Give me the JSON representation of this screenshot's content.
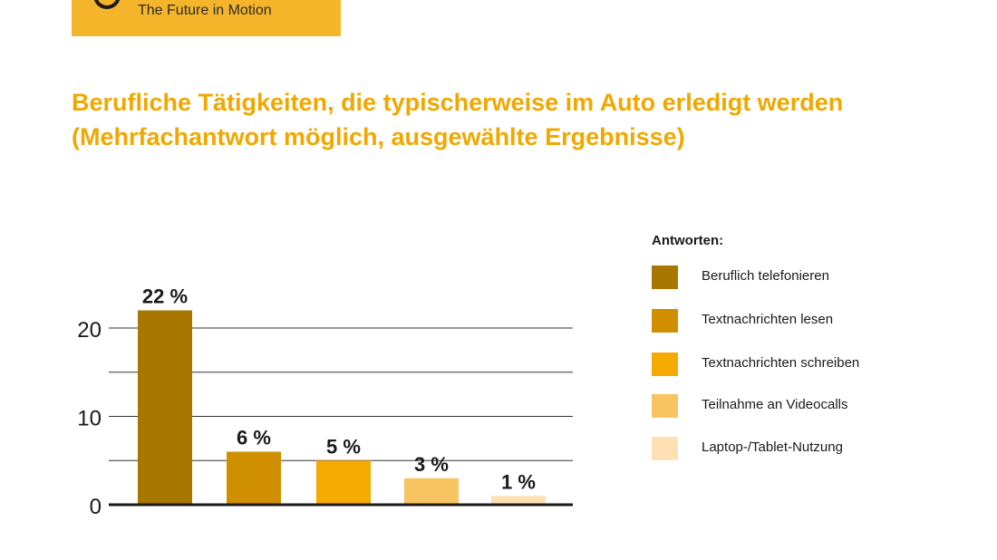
{
  "brand": {
    "tagline": "The Future in Motion"
  },
  "colors": {
    "brand_yellow": "#f5b52a",
    "title": "#f0a800",
    "series": [
      "#a77700",
      "#cf8f00",
      "#f5aa00",
      "#f8c462",
      "#fde1b4"
    ]
  },
  "legend": {
    "title": "Antworten:",
    "items": [
      "Beruflich telefonieren",
      "Textnachrichten lesen",
      "Textnachrichten schreiben",
      "Teilnahme an Videocalls",
      "Laptop-/Tablet-Nutzung"
    ]
  },
  "chart_data": {
    "type": "bar",
    "title": "Berufliche Tätigkeiten, die typischerweise im Auto erledigt werden (Mehrfachantwort möglich, ausgewählte Ergebnisse)",
    "categories": [
      "Beruflich telefonieren",
      "Textnachrichten lesen",
      "Textnachrichten schreiben",
      "Teilnahme an Videocalls",
      "Laptop-/Tablet-Nutzung"
    ],
    "values": [
      22,
      6,
      5,
      3,
      1
    ],
    "data_labels": [
      "22 %",
      "6 %",
      "5 %",
      "3 %",
      "1 %"
    ],
    "ylim": [
      0,
      20
    ],
    "yticks": [
      0,
      10,
      20
    ],
    "grid": true,
    "legend": "right",
    "xlabel": "",
    "ylabel": ""
  }
}
